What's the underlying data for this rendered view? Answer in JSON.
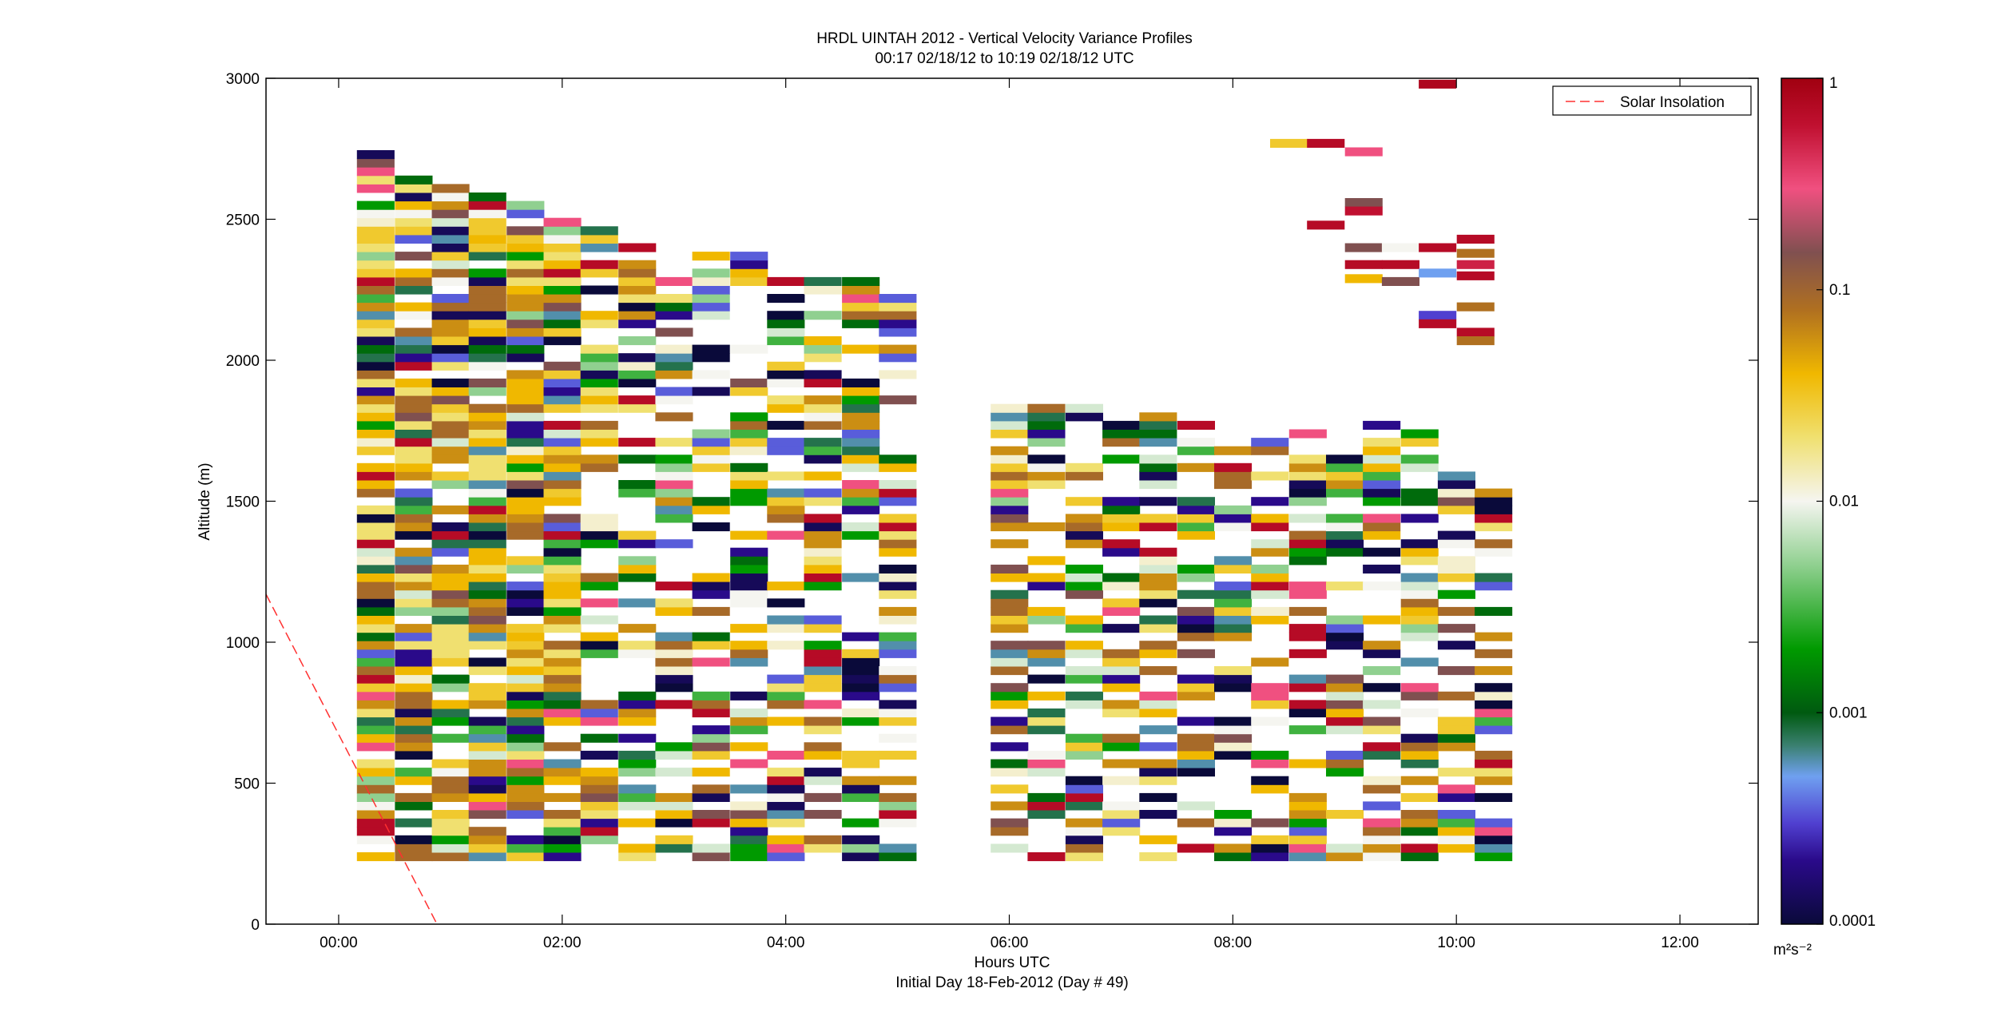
{
  "chart_data": {
    "type": "heatmap",
    "title": "HRDL UINTAH 2012 - Vertical Velocity Variance Profiles",
    "subtitle": "00:17 02/18/12 to 10:19 02/18/12  UTC",
    "xlabel": "Hours UTC",
    "xlabel2": "Initial Day 18-Feb-2012 (Day # 49)",
    "ylabel": "Altitude (m)",
    "x_unit": "hours",
    "xlim": [
      -0.65,
      12.7
    ],
    "ylim": [
      0,
      3000
    ],
    "x_ticks": [
      {
        "value": 0,
        "label": "00:00"
      },
      {
        "value": 2,
        "label": "02:00"
      },
      {
        "value": 4,
        "label": "04:00"
      },
      {
        "value": 6,
        "label": "06:00"
      },
      {
        "value": 8,
        "label": "08:00"
      },
      {
        "value": 10,
        "label": "10:00"
      },
      {
        "value": 12,
        "label": "12:00"
      }
    ],
    "y_ticks": [
      {
        "value": 0,
        "label": "0"
      },
      {
        "value": 500,
        "label": "500"
      },
      {
        "value": 1000,
        "label": "1000"
      },
      {
        "value": 1500,
        "label": "1500"
      },
      {
        "value": 2000,
        "label": "2000"
      },
      {
        "value": 2500,
        "label": "2500"
      },
      {
        "value": 3000,
        "label": "3000"
      }
    ],
    "legend": {
      "entries": [
        "Solar Insolation"
      ],
      "placement": "top-right"
    },
    "colorbar": {
      "scale": "log",
      "range": [
        0.0001,
        1
      ],
      "ticks": [
        {
          "value": 1,
          "label": "1"
        },
        {
          "value": 0.1,
          "label": "0.1"
        },
        {
          "value": 0.01,
          "label": "0.01"
        },
        {
          "value": 0.001,
          "label": "0.001"
        },
        {
          "value": 0.0001,
          "label": "0.0001"
        }
      ],
      "unit_label": "m²s⁻²",
      "stops": [
        {
          "v": 0.0001,
          "c": "#0a0a3a"
        },
        {
          "v": 0.0002,
          "c": "#2a0a8a"
        },
        {
          "v": 0.0003,
          "c": "#5040d0"
        },
        {
          "v": 0.0005,
          "c": "#6fa0f0"
        },
        {
          "v": 0.0007,
          "c": "#3a8070"
        },
        {
          "v": 0.001,
          "c": "#005a10"
        },
        {
          "v": 0.002,
          "c": "#009a00"
        },
        {
          "v": 0.005,
          "c": "#90d090"
        },
        {
          "v": 0.01,
          "c": "#f5f5f0"
        },
        {
          "v": 0.02,
          "c": "#f0e070"
        },
        {
          "v": 0.04,
          "c": "#f0b800"
        },
        {
          "v": 0.08,
          "c": "#b07020"
        },
        {
          "v": 0.15,
          "c": "#805050"
        },
        {
          "v": 0.3,
          "c": "#f05080"
        },
        {
          "v": 0.6,
          "c": "#c01030"
        },
        {
          "v": 1,
          "c": "#a00010"
        }
      ]
    },
    "series": [
      {
        "name": "Solar Insolation",
        "style": "dashed",
        "color": "#ff3030",
        "points": [
          [
            -0.65,
            1170
          ],
          [
            0.88,
            0
          ]
        ]
      }
    ],
    "profile_times": [
      0.33,
      0.67,
      1.0,
      1.33,
      1.67,
      2.0,
      2.33,
      2.67,
      3.0,
      3.33,
      3.67,
      4.0,
      4.33,
      4.67,
      5.0,
      6.0,
      6.33,
      6.67,
      7.0,
      7.33,
      7.67,
      8.0,
      8.33,
      8.67,
      9.0,
      9.33,
      9.67,
      10.0,
      10.33
    ],
    "profile_top_altitudes": [
      2730,
      2640,
      2620,
      2580,
      2560,
      2500,
      2480,
      2400,
      2320,
      2410,
      2370,
      2320,
      2290,
      2280,
      2240,
      1870,
      1870,
      1850,
      1850,
      1820,
      1810,
      1770,
      1760,
      1760,
      1750,
      1790,
      1750,
      1610,
      1610
    ],
    "upper_cells": [
      {
        "t": 8.5,
        "z": 2770,
        "v": 0.03
      },
      {
        "t": 8.83,
        "z": 2770,
        "v": 0.7
      },
      {
        "t": 9.17,
        "z": 2740,
        "v": 0.3
      },
      {
        "t": 9.83,
        "z": 2980,
        "v": 0.8
      },
      {
        "t": 8.83,
        "z": 2480,
        "v": 0.7
      },
      {
        "t": 9.17,
        "z": 2560,
        "v": 0.15
      },
      {
        "t": 9.17,
        "z": 2530,
        "v": 0.6
      },
      {
        "t": 9.17,
        "z": 2400,
        "v": 0.15
      },
      {
        "t": 9.17,
        "z": 2340,
        "v": 0.7
      },
      {
        "t": 9.17,
        "z": 2290,
        "v": 0.04
      },
      {
        "t": 9.5,
        "z": 2400,
        "v": 0.01
      },
      {
        "t": 9.5,
        "z": 2340,
        "v": 0.7
      },
      {
        "t": 9.5,
        "z": 2280,
        "v": 0.15
      },
      {
        "t": 9.83,
        "z": 2400,
        "v": 0.7
      },
      {
        "t": 9.83,
        "z": 2310,
        "v": 0.0005
      },
      {
        "t": 9.83,
        "z": 2160,
        "v": 0.0003
      },
      {
        "t": 9.83,
        "z": 2130,
        "v": 0.7
      },
      {
        "t": 10.17,
        "z": 2430,
        "v": 0.7
      },
      {
        "t": 10.17,
        "z": 2380,
        "v": 0.08
      },
      {
        "t": 10.17,
        "z": 2340,
        "v": 0.5
      },
      {
        "t": 10.17,
        "z": 2300,
        "v": 0.7
      },
      {
        "t": 10.17,
        "z": 2190,
        "v": 0.08
      },
      {
        "t": 10.17,
        "z": 2100,
        "v": 0.7
      },
      {
        "t": 10.17,
        "z": 2070,
        "v": 0.08
      }
    ]
  }
}
